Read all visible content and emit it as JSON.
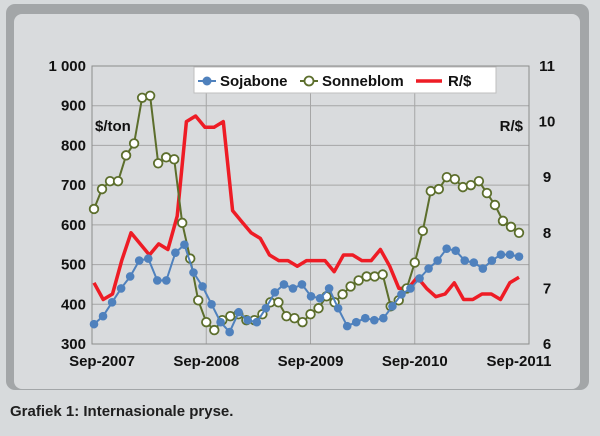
{
  "caption": "Grafiek 1: Internasionale pryse.",
  "chart_data": {
    "type": "line",
    "title": "",
    "y_left_label": "$/ton",
    "y_right_label": "R/$",
    "y_left_ticks": [
      "1 000",
      "900",
      "800",
      "700",
      "600",
      "500",
      "400",
      "300"
    ],
    "y_left_lim": [
      300,
      1000
    ],
    "y_right_ticks": [
      "11",
      "10",
      "9",
      "8",
      "7",
      "6"
    ],
    "y_right_lim": [
      6,
      11
    ],
    "x_ticks": [
      "Sep-2007",
      "Sep-2008",
      "Sep-2009",
      "Sep-2010",
      "Sep-2011"
    ],
    "legend_position": "top-center",
    "grid": true,
    "series": [
      {
        "name": "Sojabone",
        "axis": "left",
        "color": "#4f81bd",
        "marker": "filled-circle",
        "values": [
          350,
          370,
          405,
          440,
          470,
          510,
          515,
          460,
          460,
          530,
          550,
          480,
          445,
          400,
          355,
          330,
          380,
          360,
          355,
          390,
          430,
          450,
          440,
          450,
          420,
          415,
          440,
          390,
          345,
          355,
          365,
          360,
          365,
          395,
          425,
          440,
          465,
          490,
          510,
          540,
          535,
          510,
          505,
          490,
          510,
          525,
          525,
          520
        ]
      },
      {
        "name": "Sonneblom",
        "axis": "left",
        "color": "#5c6e2c",
        "marker": "open-circle",
        "values": [
          640,
          690,
          710,
          710,
          775,
          805,
          920,
          925,
          755,
          770,
          765,
          605,
          515,
          410,
          355,
          335,
          360,
          370,
          375,
          360,
          360,
          375,
          405,
          405,
          370,
          365,
          355,
          375,
          390,
          420,
          405,
          425,
          445,
          460,
          470,
          470,
          475,
          395,
          410,
          440,
          505,
          585,
          685,
          690,
          720,
          715,
          695,
          700,
          710,
          680,
          650,
          610,
          595,
          580
        ]
      },
      {
        "name": "R/$",
        "axis": "right",
        "color": "#ee1c25",
        "marker": "none",
        "values": [
          7.1,
          6.8,
          6.9,
          7.5,
          8.0,
          7.8,
          7.6,
          7.8,
          7.7,
          8.3,
          10.0,
          10.1,
          9.9,
          9.9,
          10.0,
          8.4,
          8.2,
          8.0,
          7.9,
          7.6,
          7.5,
          7.5,
          7.4,
          7.5,
          7.5,
          7.5,
          7.3,
          7.6,
          7.6,
          7.5,
          7.5,
          7.7,
          7.4,
          7.0,
          7.0,
          7.2,
          7.0,
          6.85,
          6.9,
          7.1,
          6.8,
          6.8,
          6.9,
          6.9,
          6.8,
          7.1,
          7.2
        ]
      }
    ]
  }
}
